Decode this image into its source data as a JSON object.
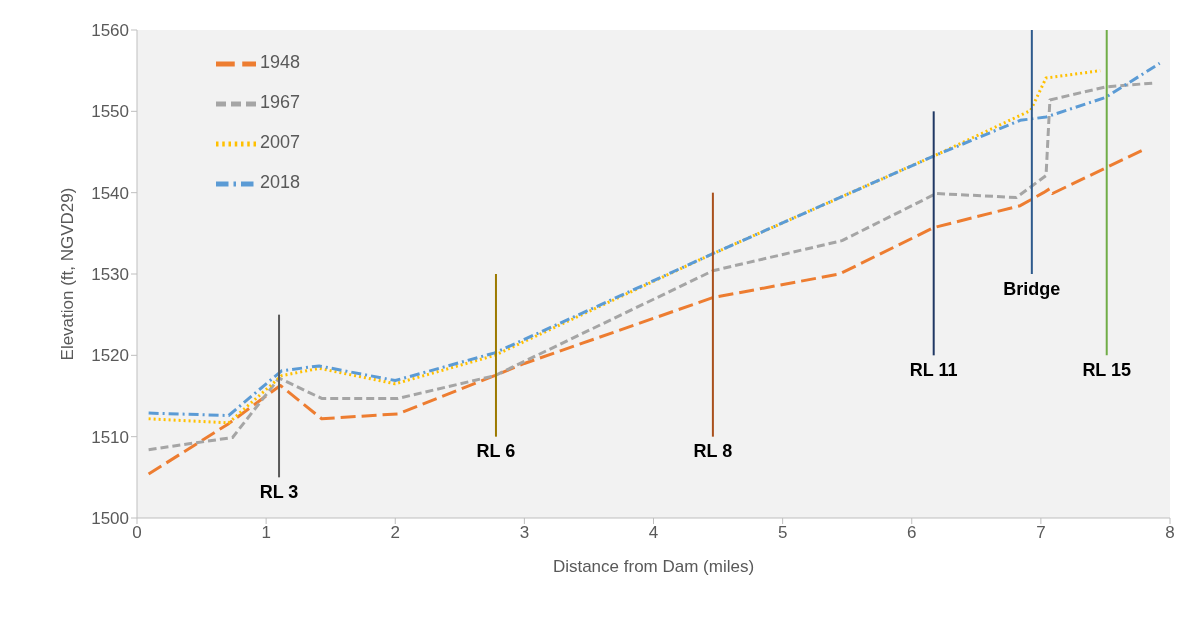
{
  "chart_data": {
    "type": "line",
    "xlabel": "Distance from Dam (miles)",
    "ylabel": "Elevation (ft, NGVD29)",
    "xlim": [
      0,
      8
    ],
    "xticks": [
      0,
      1,
      2,
      3,
      4,
      5,
      6,
      7,
      8
    ],
    "ylim": [
      1500,
      1560
    ],
    "yticks": [
      1500,
      1510,
      1520,
      1530,
      1540,
      1550,
      1560
    ],
    "grid": false,
    "legend": "top left",
    "marker": "none",
    "series": [
      {
        "name": "1948",
        "color": "#ed7d31",
        "line_style": "dashed",
        "x": [
          0.09,
          0.71,
          1.11,
          1.43,
          2.02,
          2.77,
          3.0,
          4.46,
          5.44,
          6.17,
          6.84,
          7.02,
          7.07,
          7.09,
          7.81
        ],
        "values": [
          1505.4,
          1511.6,
          1516.3,
          1512.2,
          1512.8,
          1517.5,
          1519,
          1527.1,
          1530,
          1535.7,
          1538.4,
          1540.0,
          1540.5,
          1539.9,
          1545.4
        ]
      },
      {
        "name": "1967",
        "color": "#a5a5a5",
        "line_style": "dashed",
        "x": [
          0.09,
          0.74,
          1.1,
          1.43,
          2.02,
          2.77,
          4.46,
          5.46,
          6.19,
          6.81,
          7.04,
          7.07,
          7.5,
          7.89
        ],
        "values": [
          1508.4,
          1509.9,
          1517.2,
          1514.7,
          1514.7,
          1517.5,
          1530.4,
          1534.1,
          1539.9,
          1539.4,
          1542.1,
          1551.4,
          1553.0,
          1553.5
        ]
      },
      {
        "name": "2007",
        "color": "#ffc000",
        "line_style": "dotted",
        "x": [
          0.09,
          0.71,
          1.12,
          1.41,
          2.0,
          2.77,
          4.46,
          6.17,
          6.92,
          7.04,
          7.46
        ],
        "values": [
          1512.2,
          1511.7,
          1517.5,
          1518.4,
          1516.5,
          1520,
          1532.5,
          1544.5,
          1550.1,
          1554.1,
          1555.0
        ]
      },
      {
        "name": "2018",
        "color": "#5b9bd5",
        "line_style": "dashed",
        "x": [
          0.09,
          0.71,
          1.12,
          1.41,
          2.0,
          2.77,
          4.46,
          6.17,
          6.84,
          7.04,
          7.5,
          7.92
        ],
        "values": [
          1512.9,
          1512.6,
          1518.1,
          1518.7,
          1516.9,
          1520.3,
          1532.5,
          1544.5,
          1548.9,
          1549.3,
          1551.7,
          1555.9
        ]
      },
      {
        "name": "RL 3",
        "color": "#595959",
        "line_style": "solid",
        "x": [
          1.1,
          1.1
        ],
        "values": [
          1505,
          1525
        ]
      },
      {
        "name": "RL 6",
        "color": "#9c7a00",
        "line_style": "solid",
        "x": [
          2.78,
          2.78
        ],
        "values": [
          1510,
          1530
        ]
      },
      {
        "name": "RL 8",
        "color": "#a9501c",
        "line_style": "solid",
        "x": [
          4.46,
          4.46
        ],
        "values": [
          1510,
          1540
        ]
      },
      {
        "name": "RL 11",
        "color": "#203864",
        "line_style": "solid",
        "x": [
          6.17,
          6.17
        ],
        "values": [
          1520,
          1550
        ]
      },
      {
        "name": "Bridge",
        "color": "#2e5a8c",
        "line_style": "solid",
        "x": [
          6.93,
          6.93
        ],
        "values": [
          1530,
          1560
        ]
      },
      {
        "name": "RL 15",
        "color": "#70ad47",
        "line_style": "solid",
        "x": [
          7.51,
          7.51
        ],
        "values": [
          1520,
          1560
        ]
      }
    ]
  }
}
